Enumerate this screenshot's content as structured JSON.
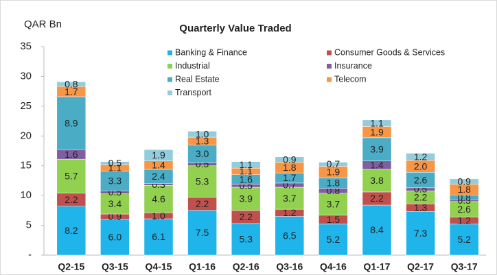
{
  "chart_data": {
    "type": "stacked_bar",
    "title": "Quarterly Value Traded",
    "y_label": "QAR Bn",
    "categories": [
      "Q2-15",
      "Q3-15",
      "Q4-15",
      "Q1-16",
      "Q2-16",
      "Q3-16",
      "Q4-16",
      "Q1-17",
      "Q2-17",
      "Q3-17"
    ],
    "series": [
      {
        "name": "Banking & Finance",
        "color": "#1fb4ea",
        "values": [
          8.2,
          6,
          6.1,
          7.5,
          5.3,
          6.5,
          5.2,
          8.4,
          7.3,
          5.2
        ],
        "value_labels": [
          "8.2",
          "6.0",
          "6.1",
          "7.5",
          "5.3",
          "6.5",
          "5.2",
          "8.4",
          "7.3",
          "5.2"
        ]
      },
      {
        "name": "Consumer Goods & Services",
        "color": "#c0504d",
        "values": [
          2.2,
          0.9,
          1,
          2.2,
          2.2,
          1.2,
          1.5,
          2.2,
          1.3,
          1.2
        ],
        "value_labels": [
          "2.2",
          "0.9",
          "1.0",
          "2.2",
          "2.2",
          "1.2",
          "1.5",
          "2.2",
          "1.3",
          "1.2"
        ]
      },
      {
        "name": "Industrial",
        "color": "#92d050",
        "values": [
          5.7,
          3.4,
          4.6,
          5.3,
          3.9,
          3.7,
          3.7,
          3.8,
          2.2,
          2.6
        ],
        "value_labels": [
          "5.7",
          "3.4",
          "4.6",
          "5.3",
          "3.9",
          "3.7",
          "3.7",
          "3.8",
          "2.2",
          "2.6"
        ]
      },
      {
        "name": "Insurance",
        "color": "#7f5fa0",
        "values": [
          1.6,
          0.5,
          0.3,
          0.5,
          0.5,
          0.7,
          0.8,
          1.4,
          0.5,
          0.3
        ],
        "value_labels": [
          "1.6",
          "0.5",
          "0.3",
          "0.5",
          "0.5",
          "0.7",
          "0.8",
          "1.4",
          "0.5",
          "0.3"
        ]
      },
      {
        "name": "Real Estate",
        "color": "#4bacc6",
        "values": [
          8.9,
          3.3,
          2.4,
          3,
          1.6,
          1.7,
          1.8,
          3.9,
          2.6,
          0.8
        ],
        "value_labels": [
          "8.9",
          "3.3",
          "2.4",
          "3.0",
          "1.6",
          "1.7",
          "1.8",
          "3.9",
          "2.6",
          "0.8"
        ]
      },
      {
        "name": "Telecom",
        "color": "#f79646",
        "values": [
          1.7,
          1.1,
          1.4,
          1.3,
          1.1,
          1.8,
          1.9,
          1.9,
          2,
          1.8
        ],
        "value_labels": [
          "1.7",
          "1.1",
          "1.4",
          "1.3",
          "1.1",
          "1.8",
          "1.9",
          "1.9",
          "2.0",
          "1.8"
        ]
      },
      {
        "name": "Transport",
        "color": "#93cddd",
        "values": [
          0.8,
          0.5,
          1.9,
          1,
          1.1,
          0.9,
          0.7,
          1.1,
          1.2,
          0.9
        ],
        "value_labels": [
          "0.8",
          "0.5",
          "1.9",
          "1.0",
          "1.1",
          "0.9",
          "0.7",
          "1.1",
          "1.2",
          "0.9"
        ]
      }
    ],
    "ylim": [
      0,
      35
    ],
    "yticks": [
      {
        "value": 0,
        "label": "-"
      },
      5,
      10,
      15,
      20,
      25,
      30,
      35
    ],
    "grid": false,
    "legend": "top"
  }
}
